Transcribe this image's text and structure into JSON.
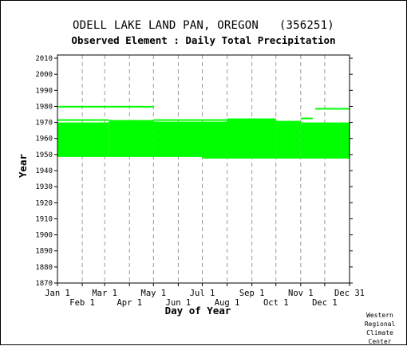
{
  "chart_data": {
    "type": "timeline",
    "title": "ODELL LAKE LAND PAN, OREGON   (356251)",
    "subtitle": "Observed Element : Daily Total Precipitation",
    "xlabel": "Day of Year",
    "ylabel": "Year",
    "xlim": [
      1,
      366
    ],
    "ylim": [
      1870,
      2012
    ],
    "y_ticks": [
      1870,
      1880,
      1890,
      1900,
      1910,
      1920,
      1930,
      1940,
      1950,
      1960,
      1970,
      1980,
      1990,
      2000,
      2010
    ],
    "x_ticks_top_row": [
      {
        "label": "Jan 1",
        "day": 1
      },
      {
        "label": "Mar 1",
        "day": 60
      },
      {
        "label": "May 1",
        "day": 121
      },
      {
        "label": "Jul 1",
        "day": 182
      },
      {
        "label": "Sep 1",
        "day": 244
      },
      {
        "label": "Nov 1",
        "day": 305
      },
      {
        "label": "Dec 31",
        "day": 366
      }
    ],
    "x_ticks_bottom_row": [
      {
        "label": "Feb 1",
        "day": 32
      },
      {
        "label": "Apr 1",
        "day": 91
      },
      {
        "label": "Jun 1",
        "day": 152
      },
      {
        "label": "Aug 1",
        "day": 213
      },
      {
        "label": "Oct 1",
        "day": 274
      },
      {
        "label": "Dec 1",
        "day": 335
      }
    ],
    "grid": true,
    "data_color": "#00ff00",
    "coverage_blocks": [
      {
        "day_start": 1,
        "day_end": 65,
        "year_start": 1948.5,
        "year_end": 1970
      },
      {
        "day_start": 65,
        "day_end": 121,
        "year_start": 1948.5,
        "year_end": 1971.5
      },
      {
        "day_start": 121,
        "day_end": 182,
        "year_start": 1948.5,
        "year_end": 1970.5
      },
      {
        "day_start": 182,
        "day_end": 213,
        "year_start": 1947.5,
        "year_end": 1970.5
      },
      {
        "day_start": 213,
        "day_end": 274,
        "year_start": 1947.5,
        "year_end": 1972.5
      },
      {
        "day_start": 274,
        "day_end": 305,
        "year_start": 1947.5,
        "year_end": 1971
      },
      {
        "day_start": 305,
        "day_end": 366,
        "year_start": 1947.5,
        "year_end": 1969
      }
    ],
    "coverage_lines": [
      {
        "day_start": 1,
        "day_end": 121,
        "year": 1979.8
      },
      {
        "day_start": 1,
        "day_end": 65,
        "year": 1971.5
      },
      {
        "day_start": 121,
        "day_end": 213,
        "year": 1971.5
      },
      {
        "day_start": 305,
        "day_end": 320,
        "year": 1972.5
      },
      {
        "day_start": 305,
        "day_end": 366,
        "year": 1969.5
      },
      {
        "day_start": 323,
        "day_end": 366,
        "year": 1978.5
      }
    ]
  },
  "credit_lines": [
    "Western",
    "Regional",
    "Climate",
    "Center"
  ]
}
